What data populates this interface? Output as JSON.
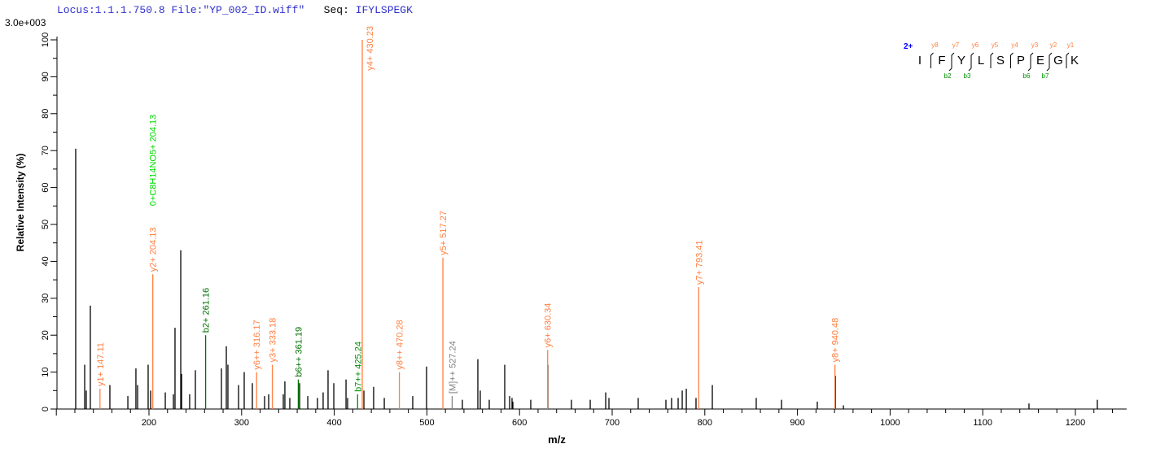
{
  "header": {
    "locus": "Locus:1.1.1.750.8",
    "file": "File:\"YP_002_ID.wiff\"",
    "seq_label": "Seq:",
    "seq": "IFYLSPEGK"
  },
  "chart_data": {
    "type": "bar",
    "title": "",
    "scale_label": "3.0e+003",
    "xlabel": "m/z",
    "ylabel": "Relative  Intensity (%)",
    "xlim": [
      100,
      1255
    ],
    "ylim": [
      0,
      100
    ],
    "xticks": [
      200,
      300,
      400,
      500,
      600,
      700,
      800,
      900,
      1000,
      1100,
      1200
    ],
    "yticks": [
      0,
      10,
      20,
      30,
      40,
      50,
      60,
      70,
      80,
      90,
      100
    ],
    "colors": {
      "y": "#ff7f3f",
      "b": "#009000",
      "b_dark": "#007000",
      "other": "#00dd00",
      "precursor": "#808080",
      "unannotated": "#000000"
    },
    "peaks": [
      [
        120.9,
        70.5
      ],
      [
        130.6,
        12
      ],
      [
        132.3,
        5
      ],
      [
        136.7,
        28
      ],
      [
        157.8,
        6.5
      ],
      [
        177.2,
        3.5
      ],
      [
        185.9,
        11
      ],
      [
        187.7,
        6.5
      ],
      [
        199.1,
        12
      ],
      [
        201.8,
        5
      ],
      [
        217.6,
        4.5
      ],
      [
        226.4,
        4
      ],
      [
        228.1,
        22
      ],
      [
        234.3,
        43
      ],
      [
        235.2,
        9.5
      ],
      [
        243.9,
        4
      ],
      [
        250.1,
        10.5
      ],
      [
        278.2,
        11
      ],
      [
        283.5,
        17
      ],
      [
        285.2,
        12
      ],
      [
        296.7,
        6.5
      ],
      [
        302.8,
        10
      ],
      [
        311.6,
        7
      ],
      [
        324.8,
        3.5
      ],
      [
        329.2,
        4
      ],
      [
        345,
        4
      ],
      [
        346.7,
        7.5
      ],
      [
        352,
        3
      ],
      [
        362.6,
        7
      ],
      [
        371.4,
        3.5
      ],
      [
        381.9,
        3
      ],
      [
        388,
        4.5
      ],
      [
        393.3,
        10.5
      ],
      [
        399.5,
        7
      ],
      [
        412.7,
        8
      ],
      [
        414.4,
        3
      ],
      [
        432,
        5
      ],
      [
        442.5,
        6
      ],
      [
        454,
        3
      ],
      [
        484.7,
        3.5
      ],
      [
        499.6,
        11.5
      ],
      [
        538.3,
        2.5
      ],
      [
        555,
        13.5
      ],
      [
        557.6,
        5
      ],
      [
        567.3,
        2.5
      ],
      [
        584,
        12
      ],
      [
        589.3,
        3.5
      ],
      [
        591.9,
        3
      ],
      [
        592.8,
        2
      ],
      [
        612.1,
        2.5
      ],
      [
        630.6,
        12
      ],
      [
        656,
        2.5
      ],
      [
        676.3,
        2.5
      ],
      [
        693,
        4.5
      ],
      [
        696.5,
        3
      ],
      [
        728.1,
        3
      ],
      [
        758,
        2.5
      ],
      [
        764.1,
        3
      ],
      [
        771.2,
        3
      ],
      [
        775.6,
        5
      ],
      [
        780,
        5.5
      ],
      [
        790.5,
        3
      ],
      [
        808.1,
        6.5
      ],
      [
        855.5,
        3
      ],
      [
        882.8,
        2.5
      ],
      [
        921.4,
        2
      ],
      [
        941,
        9
      ],
      [
        949.6,
        1
      ],
      [
        1149.9,
        1.5
      ],
      [
        1223.7,
        2.5
      ]
    ],
    "annotated": [
      {
        "mz": 147.11,
        "y": 5.5,
        "label": "y1+ 147.11",
        "kind": "y"
      },
      {
        "mz": 204.13,
        "y": 36.5,
        "label": "y2+ 204.13",
        "kind": "y",
        "extra": "0+C8H14NO5+ 204.13"
      },
      {
        "mz": 261.16,
        "y": 20,
        "label": "b2+ 261.16",
        "kind": "b_dark"
      },
      {
        "mz": 316.17,
        "y": 10,
        "label": "y6++ 316.17",
        "kind": "y"
      },
      {
        "mz": 333.18,
        "y": 12,
        "label": "y3+ 333.18",
        "kind": "y"
      },
      {
        "mz": 361.19,
        "y": 8,
        "label": "b6++ 361.19",
        "kind": "b_dark"
      },
      {
        "mz": 425.24,
        "y": 4,
        "label": "b7++ 425.24",
        "kind": "b"
      },
      {
        "mz": 430.23,
        "y": 100,
        "label": "y4+ 430.23",
        "kind": "y"
      },
      {
        "mz": 470.28,
        "y": 10,
        "label": "y8++ 470.28",
        "kind": "y"
      },
      {
        "mz": 517.27,
        "y": 41,
        "label": "y5+ 517.27",
        "kind": "y"
      },
      {
        "mz": 527.24,
        "y": 3.5,
        "label": "[M]++ 527.24",
        "kind": "precursor"
      },
      {
        "mz": 630.34,
        "y": 16,
        "label": "y6+ 630.34",
        "kind": "y"
      },
      {
        "mz": 793.41,
        "y": 33,
        "label": "y7+ 793.41",
        "kind": "y"
      },
      {
        "mz": 940.48,
        "y": 12,
        "label": "y8+ 940.48",
        "kind": "y"
      }
    ]
  },
  "peptide": {
    "charge": "2+",
    "residues": [
      "I",
      "F",
      "Y",
      "L",
      "S",
      "P",
      "E",
      "G",
      "K"
    ],
    "y_ions": [
      "y8",
      "y7",
      "y6",
      "y5",
      "y4",
      "y3",
      "y2",
      "y1"
    ],
    "b_ions": [
      {
        "after": 2,
        "label": "b2"
      },
      {
        "after": 3,
        "label": "b3"
      },
      {
        "after": 6,
        "label": "b6"
      },
      {
        "after": 7,
        "label": "b7"
      }
    ]
  }
}
